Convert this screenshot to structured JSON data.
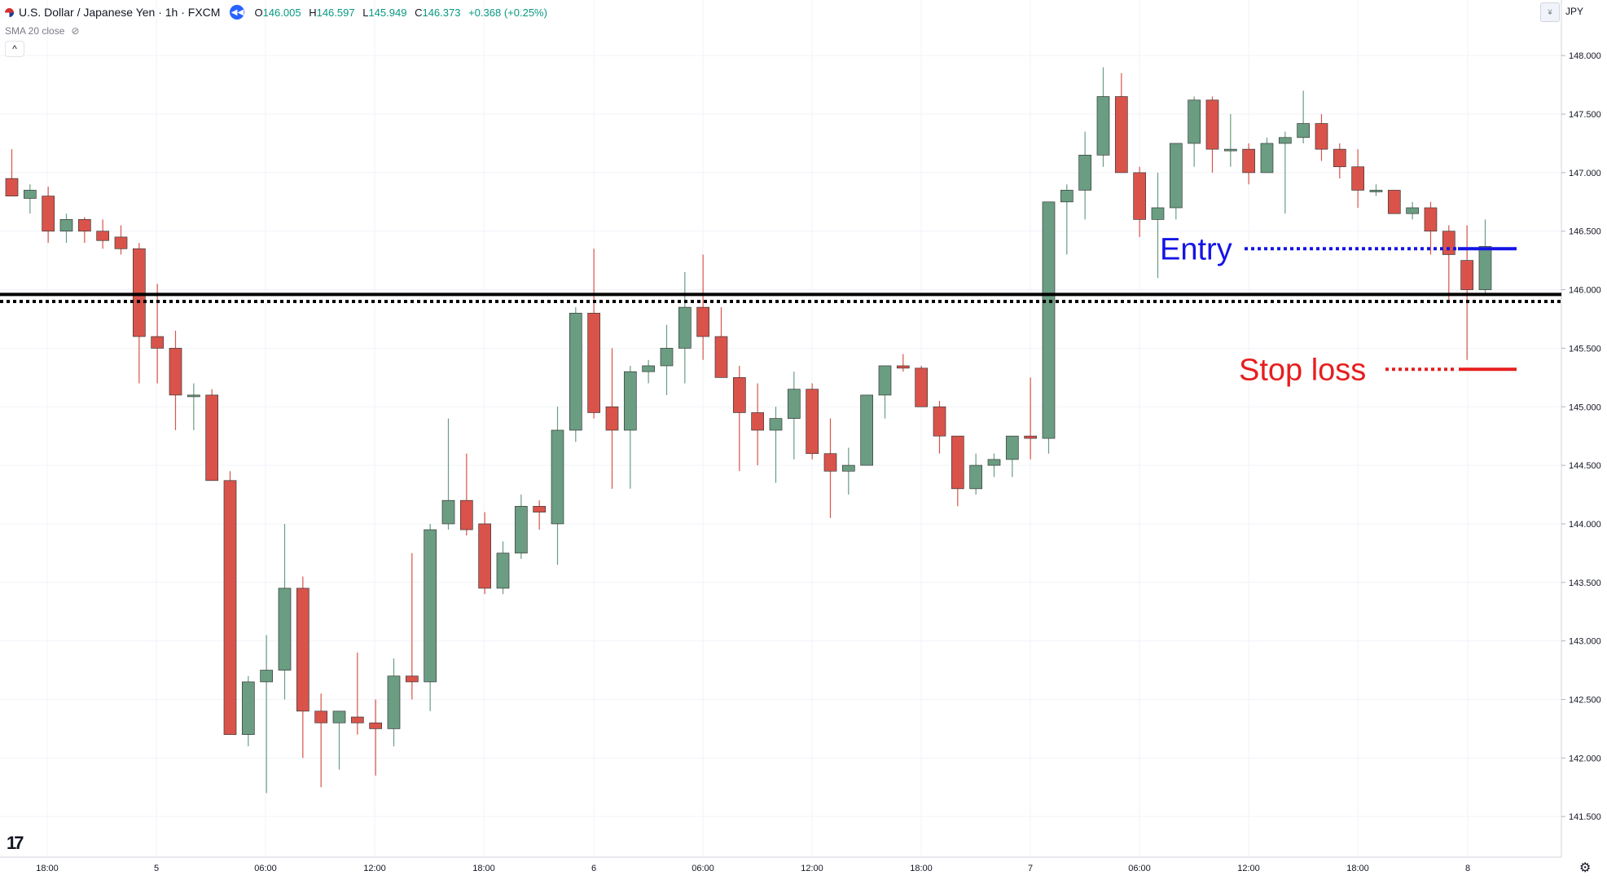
{
  "header": {
    "title": "U.S. Dollar / Japanese Yen · 1h · FXCM",
    "ohlc": [
      {
        "label": "O",
        "value": "146.005"
      },
      {
        "label": "H",
        "value": "146.597"
      },
      {
        "label": "L",
        "value": "145.949"
      },
      {
        "label": "C",
        "value": "146.373"
      },
      {
        "label": "",
        "value": "+0.368 (+0.25%)"
      }
    ],
    "indicator": "SMA 20 close",
    "collapse_glyph": "^",
    "currency": "JPY",
    "replay_icon": "rewind-icon",
    "colors": {
      "up": "#6a9d82",
      "down": "#d9534a",
      "ohlc": "#089981"
    }
  },
  "chart_data": {
    "type": "candlestick",
    "x_ticks": [
      "18:00",
      "5",
      "06:00",
      "12:00",
      "18:00",
      "6",
      "06:00",
      "12:00",
      "18:00",
      "7",
      "06:00",
      "12:00",
      "18:00",
      "8"
    ],
    "y_ticks": [
      "148.000",
      "147.500",
      "147.000",
      "146.500",
      "146.000",
      "145.500",
      "145.000",
      "144.500",
      "144.000",
      "143.500",
      "143.000",
      "142.500",
      "142.000",
      "141.500"
    ],
    "ylim": [
      141.0,
      148.6
    ],
    "grid": true,
    "candles": [
      [
        146.95,
        147.2,
        146.8,
        146.8
      ],
      [
        146.78,
        146.9,
        146.65,
        146.85
      ],
      [
        146.8,
        146.88,
        146.4,
        146.5
      ],
      [
        146.5,
        146.65,
        146.4,
        146.6
      ],
      [
        146.6,
        146.62,
        146.4,
        146.5
      ],
      [
        146.5,
        146.6,
        146.35,
        146.42
      ],
      [
        146.45,
        146.55,
        146.3,
        146.35
      ],
      [
        146.35,
        146.4,
        145.2,
        145.6
      ],
      [
        145.6,
        146.05,
        145.2,
        145.5
      ],
      [
        145.5,
        145.65,
        144.8,
        145.1
      ],
      [
        145.1,
        145.2,
        144.8,
        145.1
      ],
      [
        145.1,
        145.15,
        144.4,
        144.37
      ],
      [
        144.37,
        144.45,
        142.2,
        142.2
      ],
      [
        142.2,
        142.7,
        142.1,
        142.65
      ],
      [
        142.65,
        143.05,
        141.7,
        142.75
      ],
      [
        142.75,
        144.0,
        142.5,
        143.45
      ],
      [
        143.45,
        143.55,
        142.0,
        142.4
      ],
      [
        142.4,
        142.55,
        141.75,
        142.3
      ],
      [
        142.3,
        142.4,
        141.9,
        142.4
      ],
      [
        142.35,
        142.9,
        142.2,
        142.3
      ],
      [
        142.3,
        142.5,
        141.85,
        142.25
      ],
      [
        142.25,
        142.85,
        142.1,
        142.7
      ],
      [
        142.7,
        143.75,
        142.5,
        142.65
      ],
      [
        142.65,
        144.0,
        142.4,
        143.95
      ],
      [
        144.0,
        144.9,
        143.95,
        144.2
      ],
      [
        144.2,
        144.6,
        143.9,
        143.95
      ],
      [
        144.0,
        144.1,
        143.4,
        143.45
      ],
      [
        143.45,
        143.85,
        143.4,
        143.75
      ],
      [
        143.75,
        144.25,
        143.7,
        144.15
      ],
      [
        144.15,
        144.2,
        143.95,
        144.1
      ],
      [
        144.0,
        145.0,
        143.65,
        144.8
      ],
      [
        144.8,
        145.85,
        144.7,
        145.8
      ],
      [
        145.8,
        146.35,
        144.9,
        144.95
      ],
      [
        145.0,
        145.5,
        144.3,
        144.8
      ],
      [
        144.8,
        145.35,
        144.3,
        145.3
      ],
      [
        145.3,
        145.4,
        145.2,
        145.35
      ],
      [
        145.35,
        145.7,
        145.1,
        145.5
      ],
      [
        145.5,
        146.15,
        145.2,
        145.85
      ],
      [
        145.85,
        146.3,
        145.4,
        145.6
      ],
      [
        145.6,
        145.85,
        145.3,
        145.25
      ],
      [
        145.25,
        145.35,
        144.45,
        144.95
      ],
      [
        144.95,
        145.2,
        144.5,
        144.8
      ],
      [
        144.8,
        145.0,
        144.35,
        144.9
      ],
      [
        144.9,
        145.3,
        144.55,
        145.15
      ],
      [
        145.15,
        145.2,
        144.55,
        144.6
      ],
      [
        144.6,
        144.9,
        144.05,
        144.45
      ],
      [
        144.45,
        144.65,
        144.25,
        144.5
      ],
      [
        144.5,
        145.1,
        144.5,
        145.1
      ],
      [
        145.1,
        145.35,
        144.9,
        145.35
      ],
      [
        145.35,
        145.45,
        145.3,
        145.33
      ],
      [
        145.33,
        145.35,
        145.0,
        145.0
      ],
      [
        145.0,
        145.05,
        144.6,
        144.75
      ],
      [
        144.75,
        144.75,
        144.15,
        144.3
      ],
      [
        144.3,
        144.6,
        144.25,
        144.5
      ],
      [
        144.5,
        144.6,
        144.4,
        144.55
      ],
      [
        144.55,
        144.75,
        144.4,
        144.75
      ],
      [
        144.75,
        145.25,
        144.55,
        144.73
      ],
      [
        144.73,
        146.75,
        144.6,
        146.75
      ],
      [
        146.75,
        146.9,
        146.3,
        146.85
      ],
      [
        146.85,
        147.35,
        146.6,
        147.15
      ],
      [
        147.15,
        147.9,
        147.05,
        147.65
      ],
      [
        147.65,
        147.85,
        147.05,
        147.0
      ],
      [
        147.0,
        147.05,
        146.45,
        146.6
      ],
      [
        146.6,
        147.0,
        146.1,
        146.7
      ],
      [
        146.7,
        147.25,
        146.6,
        147.25
      ],
      [
        147.25,
        147.65,
        147.05,
        147.62
      ],
      [
        147.62,
        147.65,
        147.0,
        147.2
      ],
      [
        147.2,
        147.5,
        147.05,
        147.2
      ],
      [
        147.2,
        147.25,
        146.9,
        147.0
      ],
      [
        147.0,
        147.3,
        147.0,
        147.25
      ],
      [
        147.25,
        147.35,
        146.65,
        147.3
      ],
      [
        147.3,
        147.7,
        147.25,
        147.42
      ],
      [
        147.42,
        147.5,
        147.1,
        147.2
      ],
      [
        147.2,
        147.25,
        146.95,
        147.05
      ],
      [
        147.05,
        147.2,
        146.7,
        146.85
      ],
      [
        146.85,
        146.9,
        146.8,
        146.85
      ],
      [
        146.85,
        146.85,
        146.65,
        146.65
      ],
      [
        146.65,
        146.75,
        146.6,
        146.7
      ],
      [
        146.7,
        146.75,
        146.3,
        146.5
      ],
      [
        146.5,
        146.55,
        145.9,
        146.3
      ],
      [
        146.25,
        146.55,
        145.4,
        146.0
      ],
      [
        146.0,
        146.6,
        145.95,
        146.37
      ]
    ],
    "support_level": 145.96,
    "support_dotted": 145.9,
    "annotations": [
      {
        "text": "Entry",
        "price": 146.35,
        "color": "#1414e6"
      },
      {
        "text": "Stop loss",
        "price": 145.32,
        "color": "#e61e1e"
      }
    ]
  }
}
